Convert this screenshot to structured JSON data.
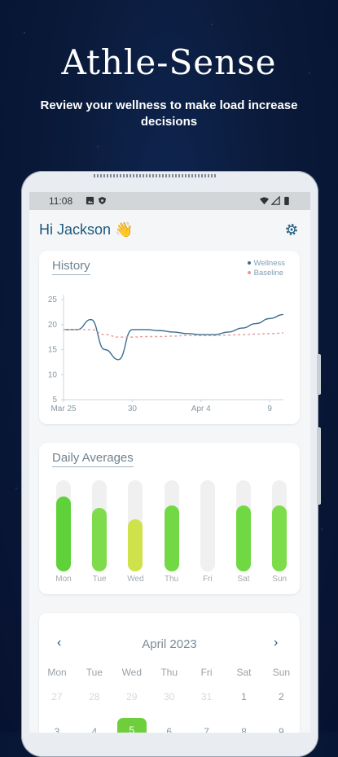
{
  "promo": {
    "headline": "Athle-Sense",
    "subhead": "Review your wellness to make load increase decisions"
  },
  "status_bar": {
    "time": "11:08"
  },
  "header": {
    "greeting": "Hi Jackson 👋"
  },
  "history": {
    "title": "History",
    "legend": [
      "Wellness",
      "Baseline"
    ]
  },
  "chart_data": {
    "type": "line",
    "title": "History",
    "x_ticks": [
      "Mar 25",
      "30",
      "Apr 4",
      "9"
    ],
    "y_ticks": [
      25,
      20,
      15,
      10,
      5
    ],
    "ylim": [
      5,
      25
    ],
    "grid": false,
    "legend_position": "top-right",
    "series": [
      {
        "name": "Wellness",
        "color": "#3b6d8f",
        "x": [
          "Mar 25",
          "Mar 26",
          "Mar 27",
          "Mar 28",
          "Mar 29",
          "Mar 30",
          "Mar 31",
          "Apr 1",
          "Apr 2",
          "Apr 3",
          "Apr 4",
          "Apr 5",
          "Apr 6",
          "Apr 7",
          "Apr 8",
          "Apr 9",
          "Apr 10"
        ],
        "y": [
          19,
          19,
          21,
          15,
          13,
          19,
          19,
          18.8,
          18.5,
          18.2,
          18,
          18,
          18.5,
          19.3,
          20.2,
          21.2,
          22
        ]
      },
      {
        "name": "Baseline",
        "color": "#e59a9a",
        "dashed": true,
        "x": [
          "Mar 25",
          "Mar 26",
          "Mar 27",
          "Mar 28",
          "Mar 29",
          "Mar 30",
          "Mar 31",
          "Apr 1",
          "Apr 2",
          "Apr 3",
          "Apr 4",
          "Apr 5",
          "Apr 6",
          "Apr 7",
          "Apr 8",
          "Apr 9",
          "Apr 10"
        ],
        "y": [
          19,
          19,
          19,
          18,
          17.5,
          17.5,
          17.6,
          17.6,
          17.7,
          17.8,
          17.8,
          17.8,
          17.9,
          18,
          18.1,
          18.2,
          18.3
        ]
      }
    ]
  },
  "daily_averages": {
    "title": "Daily Averages",
    "days": [
      {
        "label": "Mon",
        "level": 0.82,
        "color": "#5fd23a"
      },
      {
        "label": "Tue",
        "level": 0.7,
        "color": "#7edc4c"
      },
      {
        "label": "Wed",
        "level": 0.57,
        "color": "#cfe24b"
      },
      {
        "label": "Thu",
        "level": 0.72,
        "color": "#72d845"
      },
      {
        "label": "Fri",
        "level": 0,
        "color": "#e9e9e9"
      },
      {
        "label": "Sat",
        "level": 0.72,
        "color": "#6fd843"
      },
      {
        "label": "Sun",
        "level": 0.72,
        "color": "#7ddc4a"
      }
    ]
  },
  "calendar": {
    "month": "April 2023",
    "prev_icon": "chevron-left-icon",
    "next_icon": "chevron-right-icon",
    "weekdays": [
      "Mon",
      "Tue",
      "Wed",
      "Thu",
      "Fri",
      "Sat",
      "Sun"
    ],
    "row1": [
      "27",
      "28",
      "29",
      "30",
      "31",
      "1",
      "2"
    ],
    "row2": [
      "3",
      "4",
      "5",
      "6",
      "7",
      "8",
      "9"
    ]
  }
}
